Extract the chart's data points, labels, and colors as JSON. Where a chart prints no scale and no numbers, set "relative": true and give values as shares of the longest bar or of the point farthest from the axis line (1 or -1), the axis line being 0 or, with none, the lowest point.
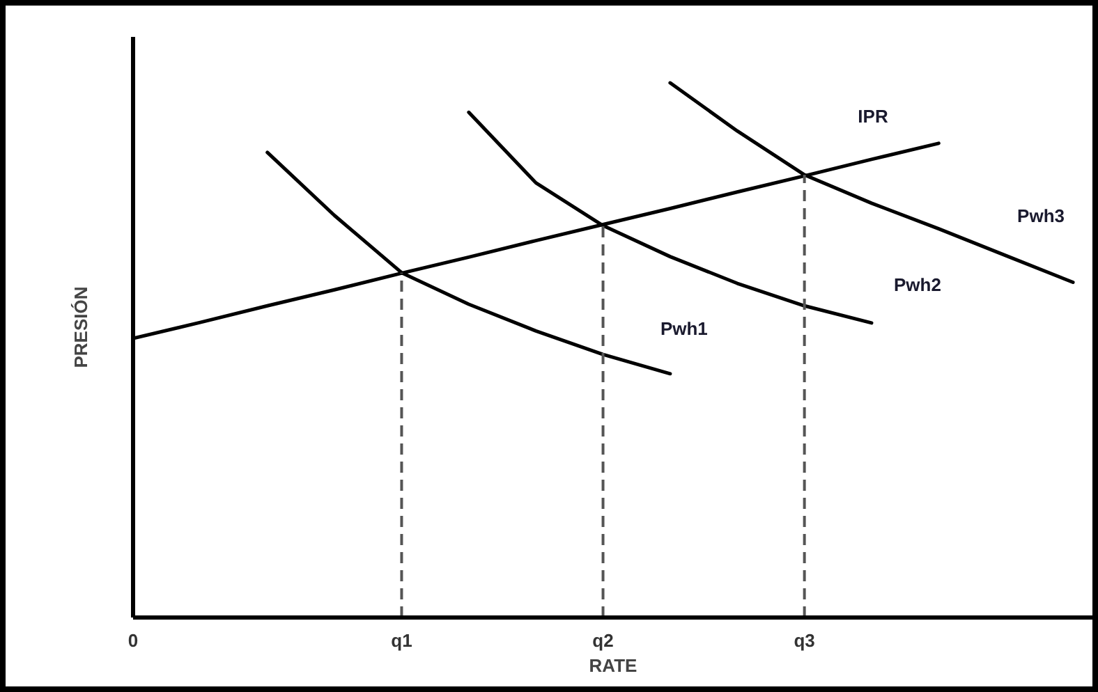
{
  "chart_data": {
    "type": "line",
    "relative": true,
    "xlabel": "RATE",
    "ylabel": "PRESIÓN",
    "grid": false,
    "marker": "none",
    "line_style": "solid",
    "categories": [
      "0",
      null,
      null,
      null,
      "q1",
      null,
      null,
      "q2",
      null,
      null,
      "q3",
      null,
      null,
      null,
      null
    ],
    "series": [
      {
        "name": "IPR",
        "color": "#000000",
        "values": [
          0.522,
          0.552,
          0.583,
          0.613,
          0.644,
          0.674,
          0.705,
          0.735,
          0.765,
          0.796,
          0.826,
          0.857,
          0.887,
          null,
          null
        ]
      },
      {
        "name": "Pwh1",
        "color": "#000000",
        "values": [
          null,
          null,
          0.87,
          0.752,
          0.645,
          0.586,
          0.536,
          0.492,
          0.456,
          null,
          null,
          null,
          null,
          null,
          null
        ]
      },
      {
        "name": "Pwh2",
        "color": "#000000",
        "values": [
          null,
          null,
          null,
          null,
          null,
          0.945,
          0.813,
          0.733,
          0.675,
          0.625,
          0.583,
          0.551,
          null,
          null,
          null
        ]
      },
      {
        "name": "Pwh3",
        "color": "#000000",
        "values": [
          null,
          null,
          null,
          null,
          null,
          null,
          null,
          null,
          1.0,
          0.91,
          0.828,
          0.775,
          0.727,
          0.677,
          0.627
        ]
      }
    ],
    "ref_lines": [
      {
        "axis": "x",
        "value": "q1",
        "color": "#555555",
        "line_style": "dashed"
      },
      {
        "axis": "x",
        "value": "q2",
        "color": "#555555",
        "line_style": "dashed"
      },
      {
        "axis": "x",
        "value": "q3",
        "color": "#555555",
        "line_style": "dashed"
      }
    ]
  }
}
